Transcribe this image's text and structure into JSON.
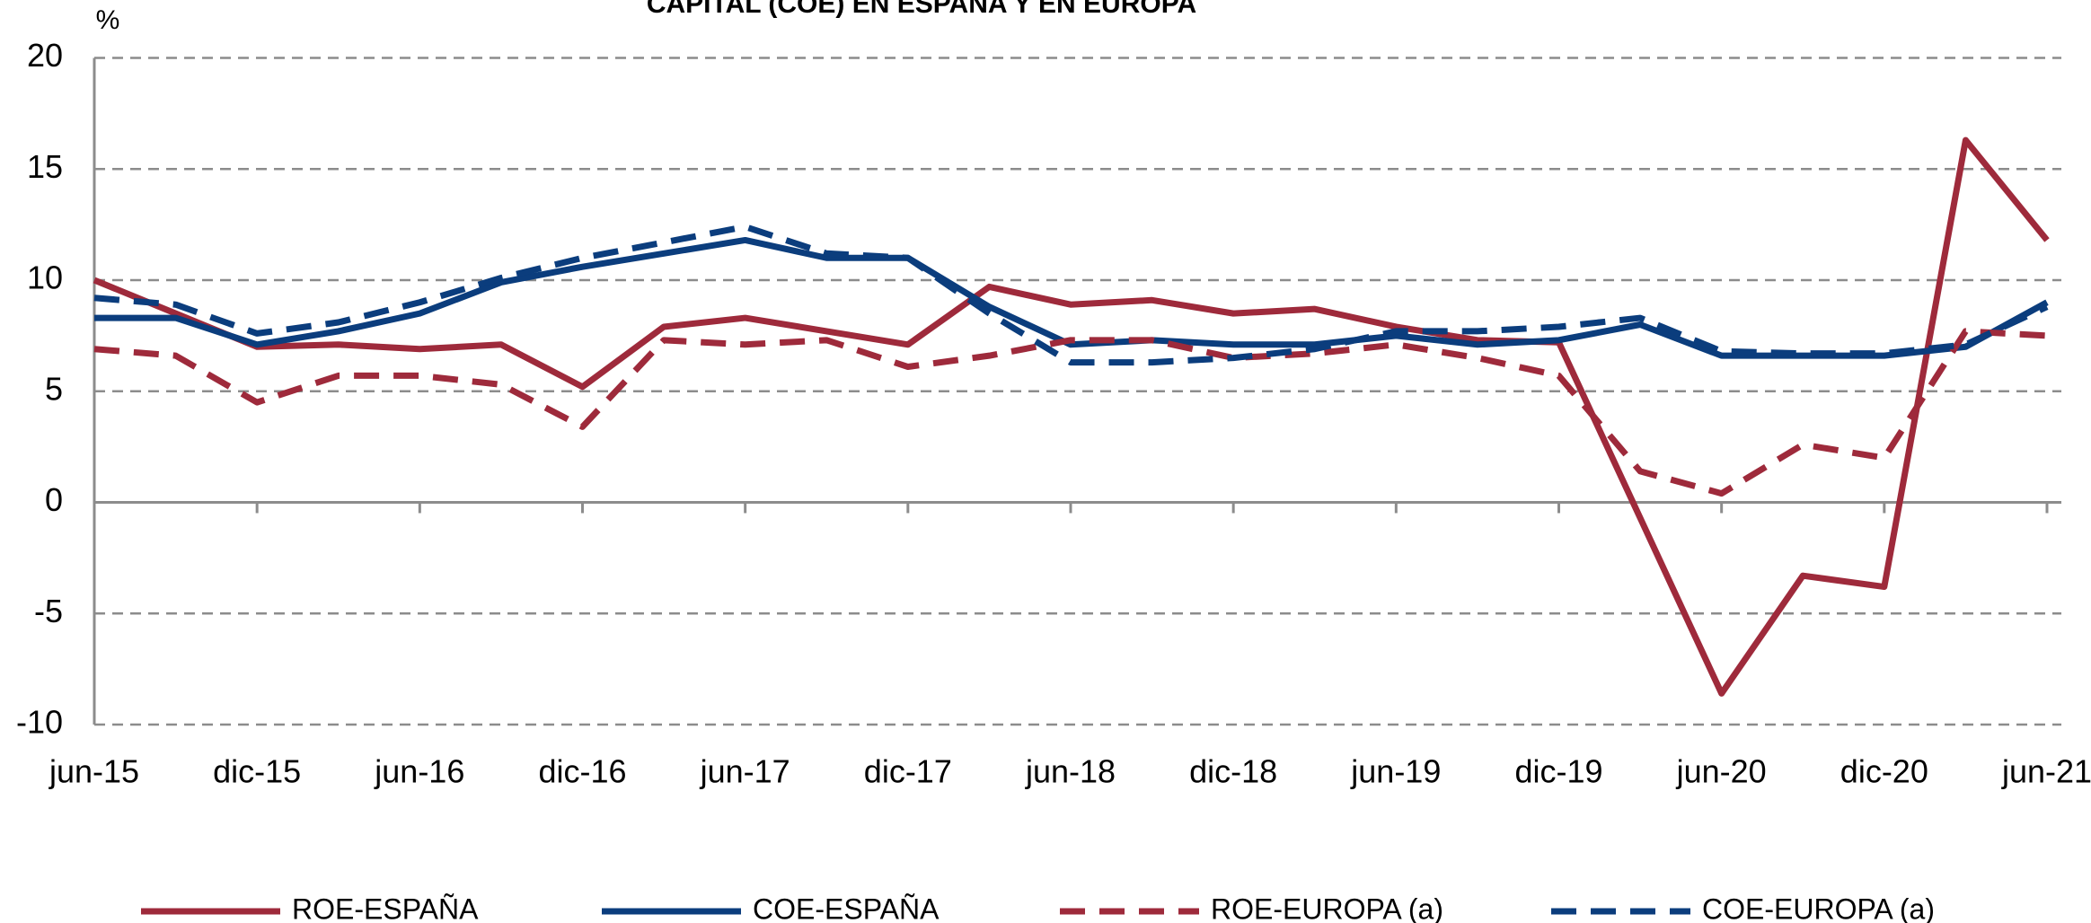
{
  "chart_data": {
    "type": "line",
    "title": "CAPITAL (COE) EN ESPAÑA Y EN EUROPA",
    "y_unit": "%",
    "categories": [
      "jun-15",
      null,
      "dic-15",
      null,
      "jun-16",
      null,
      "dic-16",
      null,
      "jun-17",
      null,
      "dic-17",
      null,
      "jun-18",
      null,
      "dic-18",
      null,
      "jun-19",
      null,
      "dic-19",
      null,
      "jun-20",
      null,
      "dic-20",
      null,
      "jun-21"
    ],
    "series": [
      {
        "name": "ROE-ESPAÑA",
        "color": "#9e2a3b",
        "dash": false,
        "values": [
          10.0,
          8.5,
          7.0,
          7.1,
          6.9,
          7.1,
          5.2,
          7.9,
          8.3,
          7.7,
          7.1,
          9.7,
          8.9,
          9.1,
          8.5,
          8.7,
          7.9,
          7.3,
          7.2,
          -0.7,
          -8.6,
          -3.3,
          -3.8,
          16.3,
          11.8
        ]
      },
      {
        "name": "COE-ESPAÑA",
        "color": "#0b3d7d",
        "dash": false,
        "values": [
          8.3,
          8.3,
          7.1,
          7.7,
          8.5,
          9.9,
          10.6,
          11.2,
          11.8,
          11.0,
          11.0,
          8.8,
          7.1,
          7.3,
          7.1,
          7.1,
          7.5,
          7.1,
          7.3,
          8.0,
          6.6,
          6.6,
          6.6,
          7.0,
          9.0
        ]
      },
      {
        "name": "ROE-EUROPA (a)",
        "color": "#9e2a3b",
        "dash": true,
        "values": [
          6.9,
          6.6,
          4.5,
          5.7,
          5.7,
          5.3,
          3.4,
          7.3,
          7.1,
          7.3,
          6.1,
          6.6,
          7.3,
          7.3,
          6.5,
          6.7,
          7.1,
          6.5,
          5.7,
          1.4,
          0.4,
          2.6,
          2.0,
          7.7,
          7.5
        ]
      },
      {
        "name": "COE-EUROPA (a)",
        "color": "#0b3d7d",
        "dash": true,
        "values": [
          9.2,
          8.9,
          7.6,
          8.1,
          9.0,
          10.1,
          11.0,
          11.7,
          12.4,
          11.2,
          11.0,
          8.5,
          6.3,
          6.3,
          6.5,
          6.9,
          7.7,
          7.7,
          7.9,
          8.3,
          6.8,
          6.7,
          6.7,
          7.1,
          8.8
        ]
      }
    ],
    "ylim": [
      -10,
      20
    ],
    "yticks": [
      -10,
      -5,
      0,
      5,
      10,
      15,
      20
    ],
    "grid": true,
    "legend": "bottom"
  }
}
